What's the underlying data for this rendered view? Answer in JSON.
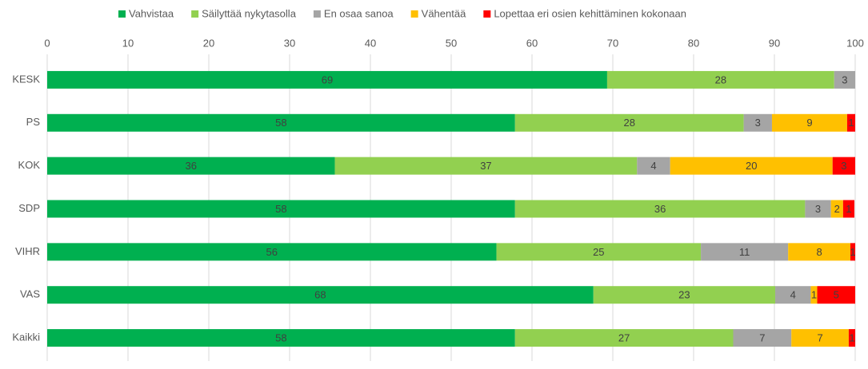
{
  "chart_data": {
    "type": "stacked_barh",
    "categories": [
      "KESK",
      "PS",
      "KOK",
      "SDP",
      "VIHR",
      "VAS",
      "Kaikki"
    ],
    "series": [
      {
        "name": "Vahvistaa",
        "color": "#00b050",
        "values": [
          69.3,
          57.9,
          35.6,
          57.9,
          55.6,
          67.6,
          57.9
        ],
        "value_labels": [
          "69",
          "58",
          "36",
          "58",
          "56",
          "68",
          "58"
        ]
      },
      {
        "name": "Säilyttää nykytasolla",
        "color": "#92d050",
        "values": [
          28.1,
          28.3,
          37.4,
          35.9,
          25.3,
          22.5,
          27.0
        ],
        "value_labels": [
          "28",
          "28",
          "37",
          "36",
          "25",
          "23",
          "27"
        ]
      },
      {
        "name": "En osaa sanoa",
        "color": "#a5a5a5",
        "values": [
          2.6,
          3.5,
          4.1,
          3.2,
          10.8,
          4.4,
          7.2
        ],
        "value_labels": [
          "3",
          "3",
          "4",
          "3",
          "11",
          "4",
          "7"
        ]
      },
      {
        "name": "Vähentää",
        "color": "#ffc000",
        "values": [
          null,
          9.3,
          20.1,
          1.5,
          7.7,
          0.8,
          7.1
        ],
        "value_labels": [
          null,
          "9",
          "20",
          "2",
          "8",
          "1",
          "7"
        ]
      },
      {
        "name": "Lopettaa eri osien kehittäminen kokonaan",
        "color": "#ff0000",
        "values": [
          null,
          1.0,
          2.8,
          1.4,
          0.6,
          4.7,
          0.8
        ],
        "value_labels": [
          null,
          "1",
          "3",
          "1",
          "1",
          "5",
          "1"
        ]
      }
    ],
    "xlim": [
      0,
      100
    ],
    "xticks": [
      0,
      10,
      20,
      30,
      40,
      50,
      60,
      70,
      80,
      90,
      100
    ],
    "grid": true,
    "legend": "top"
  }
}
